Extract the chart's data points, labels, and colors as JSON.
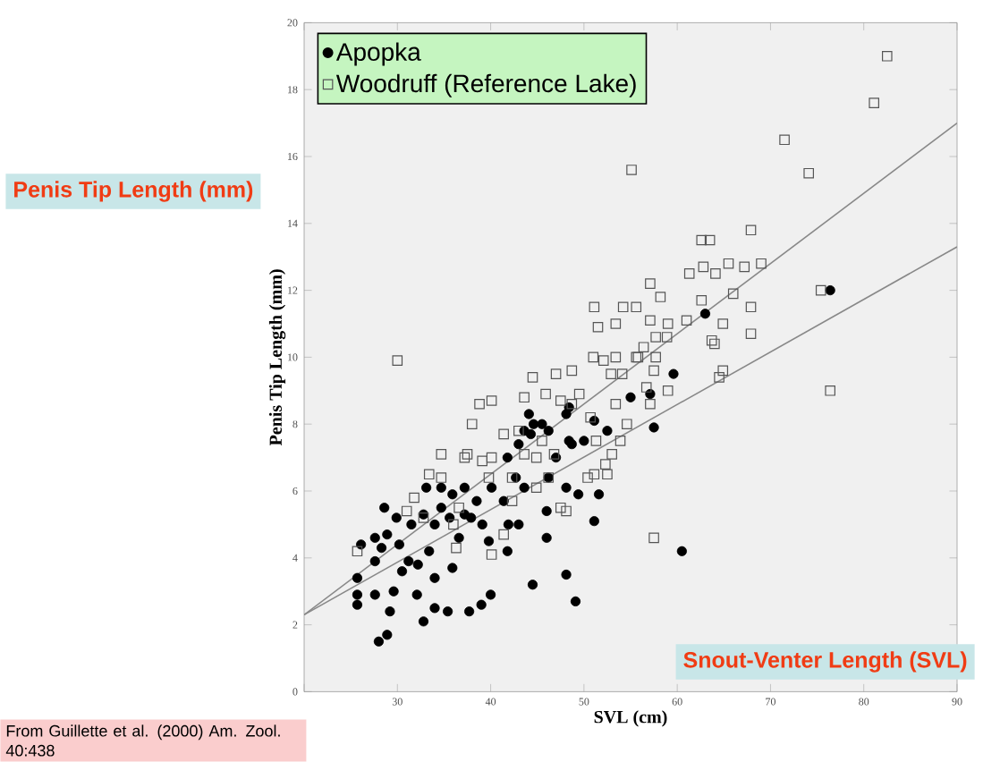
{
  "chart_data": {
    "type": "scatter",
    "xlabel": "SVL (cm)",
    "ylabel": "Penis Tip Length (mm)",
    "annotations": [
      "Penis Tip Length (mm)",
      "Snout-Venter Length (SVL)",
      "From Guillette et al. (2000) Am. Zool. 40:438"
    ],
    "xlim": [
      20,
      90
    ],
    "ylim": [
      0,
      20
    ],
    "xticks": [
      {
        "value": 20,
        "label": null
      },
      30,
      40,
      50,
      60,
      70,
      80,
      90
    ],
    "yticks": [
      0,
      2,
      4,
      6,
      8,
      10,
      12,
      14,
      16,
      18,
      20
    ],
    "grid": false,
    "legend": "top left",
    "series": [
      {
        "name": "Apopka",
        "color": "#000000",
        "marker": "circle",
        "x": [
          76.4,
          63.0,
          59.6,
          57.1,
          55.0,
          57.5,
          52.5,
          51.1,
          48.4,
          48.1,
          44.1,
          45.5,
          48.7,
          50.0,
          47.0,
          44.3,
          43.0,
          41.8,
          46.2,
          48.1,
          49.4,
          51.6,
          46.0,
          51.1,
          46.0,
          41.8,
          60.5,
          44.5,
          48.1,
          49.1,
          40.0,
          39.0,
          37.7,
          35.4,
          34.0,
          32.8,
          29.2,
          25.7,
          25.7,
          27.6,
          28.0,
          28.9,
          26.1,
          25.7,
          27.6,
          28.6,
          28.9,
          31.2,
          32.2,
          34.0,
          35.9,
          33.4,
          29.6,
          32.1,
          29.9,
          31.5,
          32.8,
          34.0,
          35.6,
          36.6,
          37.2,
          38.5,
          39.1,
          40.1,
          41.4,
          41.9,
          43.0,
          37.2,
          35.9,
          34.7,
          33.1,
          34.7,
          42.7,
          43.6,
          37.9,
          39.8,
          27.6,
          28.3,
          30.2,
          30.5,
          43.6,
          44.6,
          46.2,
          48.4
        ],
        "values": [
          12.0,
          11.3,
          9.5,
          8.9,
          8.8,
          7.9,
          7.8,
          8.1,
          8.5,
          8.3,
          8.3,
          8.0,
          7.4,
          7.5,
          7.0,
          7.7,
          7.4,
          7.0,
          6.4,
          6.1,
          5.9,
          5.9,
          5.4,
          5.1,
          4.6,
          4.2,
          4.2,
          3.2,
          3.5,
          2.7,
          2.9,
          2.6,
          2.4,
          2.4,
          2.5,
          2.1,
          2.4,
          2.6,
          2.9,
          2.9,
          1.5,
          1.7,
          4.4,
          3.4,
          3.9,
          5.5,
          4.7,
          3.9,
          3.8,
          3.4,
          3.7,
          4.2,
          3.0,
          2.9,
          5.2,
          5.0,
          5.3,
          5.0,
          5.2,
          4.6,
          5.3,
          5.7,
          5.0,
          6.1,
          5.7,
          5.0,
          5.0,
          6.1,
          5.9,
          6.1,
          6.1,
          5.5,
          6.4,
          6.1,
          5.2,
          4.5,
          4.6,
          4.3,
          4.4,
          3.6,
          7.8,
          8.0,
          7.8,
          7.5
        ]
      },
      {
        "name": "Woodruff (Reference Lake)",
        "color": "#555555",
        "marker": "square",
        "x": [
          30.0,
          55.1,
          71.5,
          74.1,
          81.1,
          82.5,
          67.9,
          62.6,
          63.5,
          62.8,
          61.3,
          64.1,
          65.5,
          67.2,
          69.0,
          66.0,
          62.6,
          67.9,
          64.9,
          63.7,
          64.0,
          67.9,
          75.4,
          76.4,
          64.9,
          64.5,
          61.0,
          59.0,
          58.9,
          57.1,
          58.2,
          54.2,
          55.6,
          53.4,
          51.5,
          51.1,
          57.1,
          57.7,
          56.4,
          55.8,
          57.7,
          57.5,
          59.0,
          56.7,
          57.1,
          53.4,
          52.9,
          54.1,
          51.0,
          52.1,
          53.4,
          55.6,
          54.6,
          53.9,
          53.0,
          51.1,
          52.5,
          50.4,
          57.5,
          48.1,
          48.7,
          47.0,
          44.5,
          43.6,
          40.1,
          38.8,
          38.0,
          41.4,
          43.0,
          45.9,
          47.5,
          48.7,
          49.5,
          50.7,
          45.5,
          46.8,
          44.9,
          37.5,
          37.2,
          39.1,
          40.1,
          33.4,
          34.7,
          31.8,
          31.0,
          25.7,
          36.3,
          40.1,
          41.4,
          44.9,
          47.5,
          42.3,
          39.8,
          43.6,
          36.0,
          36.6,
          32.8,
          34.7,
          42.3,
          46.2,
          51.3,
          52.3
        ],
        "values": [
          9.9,
          15.6,
          16.5,
          15.5,
          17.6,
          19.0,
          13.8,
          13.5,
          13.5,
          12.7,
          12.5,
          12.5,
          12.8,
          12.7,
          12.8,
          11.9,
          11.7,
          11.5,
          11.0,
          10.5,
          10.4,
          10.7,
          12.0,
          9.0,
          9.6,
          9.4,
          11.1,
          11.0,
          10.6,
          12.2,
          11.8,
          11.5,
          11.5,
          11.0,
          10.9,
          11.5,
          11.1,
          10.6,
          10.3,
          10.0,
          10.0,
          9.6,
          9.0,
          9.1,
          8.6,
          8.6,
          9.5,
          9.5,
          10.0,
          9.9,
          10.0,
          10.0,
          8.0,
          7.5,
          7.1,
          6.5,
          6.5,
          6.4,
          4.6,
          5.4,
          9.6,
          9.5,
          9.4,
          8.8,
          8.7,
          8.6,
          8.0,
          7.7,
          7.8,
          8.9,
          8.7,
          8.6,
          8.9,
          8.2,
          7.5,
          7.1,
          7.0,
          7.1,
          7.0,
          6.9,
          7.0,
          6.5,
          6.4,
          5.8,
          5.4,
          4.2,
          4.3,
          4.1,
          4.7,
          6.1,
          5.5,
          6.4,
          6.4,
          7.1,
          5.0,
          5.5,
          5.2,
          7.1,
          5.7,
          6.4,
          7.5,
          6.8
        ]
      },
      {
        "type": "line",
        "color": "#888888",
        "x": [
          20,
          90
        ],
        "values": [
          2.3,
          17.0
        ]
      },
      {
        "type": "line",
        "color": "#888888",
        "x": [
          20,
          90
        ],
        "values": [
          2.3,
          13.3
        ]
      }
    ]
  }
}
